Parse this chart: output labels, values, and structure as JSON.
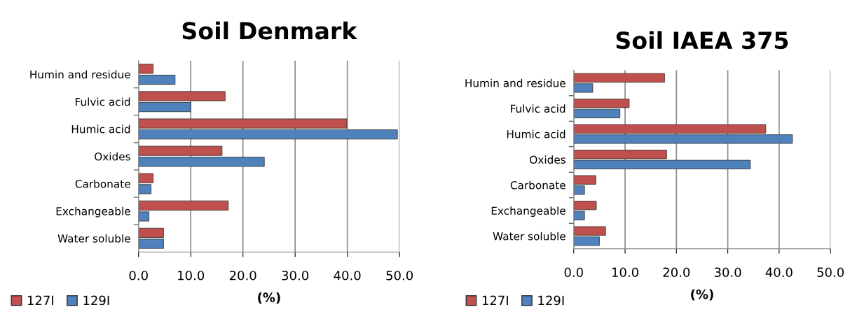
{
  "chart_data": [
    {
      "type": "bar",
      "orientation": "horizontal",
      "title": "Soil Denmark",
      "xlabel": "(%)",
      "categories": [
        "Humin and residue",
        "Fulvic acid",
        "Humic acid",
        "Oxides",
        "Carbonate",
        "Exchangeable",
        "Water soluble"
      ],
      "series": [
        {
          "name": "127I",
          "color": "#c0504d",
          "values": [
            2.8,
            16.6,
            39.9,
            16.0,
            2.8,
            17.2,
            4.8
          ]
        },
        {
          "name": "129I",
          "color": "#4f81bd",
          "values": [
            7.0,
            10.0,
            49.6,
            24.1,
            2.4,
            2.0,
            4.8
          ]
        }
      ],
      "xlim": [
        0,
        50
      ],
      "xticks": [
        {
          "value": 0,
          "label": "0.0"
        },
        {
          "value": 10,
          "label": "10.0"
        },
        {
          "value": 20,
          "label": "20.0"
        },
        {
          "value": 30,
          "label": "30.0"
        },
        {
          "value": 40,
          "label": "40.0"
        },
        {
          "value": 50,
          "label": "50.0"
        }
      ],
      "grid": "x",
      "legend": "bottom left"
    },
    {
      "type": "bar",
      "orientation": "horizontal",
      "title": "Soil IAEA 375",
      "xlabel": "(%)",
      "categories": [
        "Humin and residue",
        "Fulvic acid",
        "Humic acid",
        "Oxides",
        "Carbonate",
        "Exchangeable",
        "Water soluble"
      ],
      "series": [
        {
          "name": "127I",
          "color": "#c0504d",
          "values": [
            17.7,
            10.8,
            37.4,
            18.1,
            4.3,
            4.4,
            6.2
          ]
        },
        {
          "name": "129I",
          "color": "#4f81bd",
          "values": [
            3.7,
            9.0,
            42.6,
            34.4,
            2.1,
            2.1,
            5.0
          ]
        }
      ],
      "xlim": [
        0,
        50
      ],
      "xticks": [
        {
          "value": 0,
          "label": "0.0"
        },
        {
          "value": 10,
          "label": "10.0"
        },
        {
          "value": 20,
          "label": "20.0"
        },
        {
          "value": 30,
          "label": "30.0"
        },
        {
          "value": 40,
          "label": "40.0"
        },
        {
          "value": 50,
          "label": "50.0"
        }
      ],
      "grid": "x",
      "legend": "bottom left"
    }
  ]
}
